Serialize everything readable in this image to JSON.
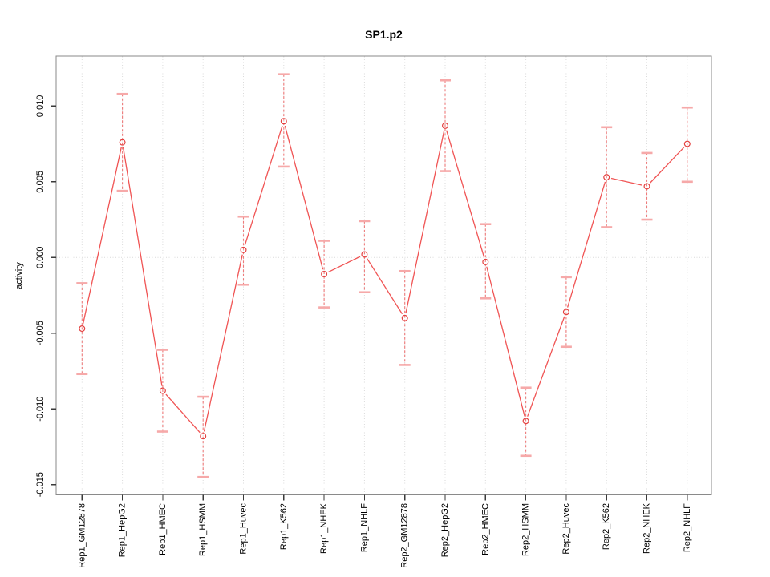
{
  "chart_data": {
    "type": "line",
    "title": "SP1.p2",
    "ylabel": "activity",
    "xlabel": "",
    "marker": "open-circle",
    "error_bars": true,
    "legend": "none",
    "categories": [
      "Rep1_GM12878",
      "Rep1_HepG2",
      "Rep1_HMEC",
      "Rep1_HSMM",
      "Rep1_Huvec",
      "Rep1_K562",
      "Rep1_NHEK",
      "Rep1_NHLF",
      "Rep2_GM12878",
      "Rep2_HepG2",
      "Rep2_HMEC",
      "Rep2_HSMM",
      "Rep2_Huvec",
      "Rep2_K562",
      "Rep2_NHEK",
      "Rep2_NHLF"
    ],
    "series": [
      {
        "name": "activity",
        "values": [
          -0.0047,
          0.0076,
          -0.0088,
          -0.0118,
          0.0005,
          0.009,
          -0.0011,
          0.0002,
          -0.004,
          0.0087,
          -0.0003,
          -0.0108,
          -0.0036,
          0.0053,
          0.0047,
          0.0075
        ],
        "ci_low": [
          -0.0077,
          0.0044,
          -0.0115,
          -0.0145,
          -0.0018,
          0.006,
          -0.0033,
          -0.0023,
          -0.0071,
          0.0057,
          -0.0027,
          -0.0131,
          -0.0059,
          0.002,
          0.0025,
          0.005
        ],
        "ci_high": [
          -0.0017,
          0.0108,
          -0.0061,
          -0.0092,
          0.0027,
          0.0121,
          0.0011,
          0.0024,
          -0.0009,
          0.0117,
          0.0022,
          -0.0086,
          -0.0013,
          0.0086,
          0.0069,
          0.0099
        ]
      }
    ],
    "yticks": [
      -0.015,
      -0.01,
      -0.005,
      0.0,
      0.005,
      0.01
    ],
    "ytick_labels": [
      "-0.015",
      "-0.010",
      "-0.005",
      "0.000",
      "0.005",
      "0.010"
    ],
    "ylim": [
      -0.01568,
      0.0133
    ],
    "grid": {
      "vertical_at_categories": true,
      "horizontal_at_zero": true,
      "style": "dotted"
    },
    "colors": {
      "segment_line": "#f05454",
      "marker_stroke": "#e4403f",
      "error_line": "#ee7b7b",
      "error_cap": "#f6a9a9",
      "grid_line": "#dadada",
      "plot_border": "#8a8a8a",
      "tick_mark": "#3a3a3a",
      "text": "#000000",
      "background": "#ffffff"
    }
  }
}
